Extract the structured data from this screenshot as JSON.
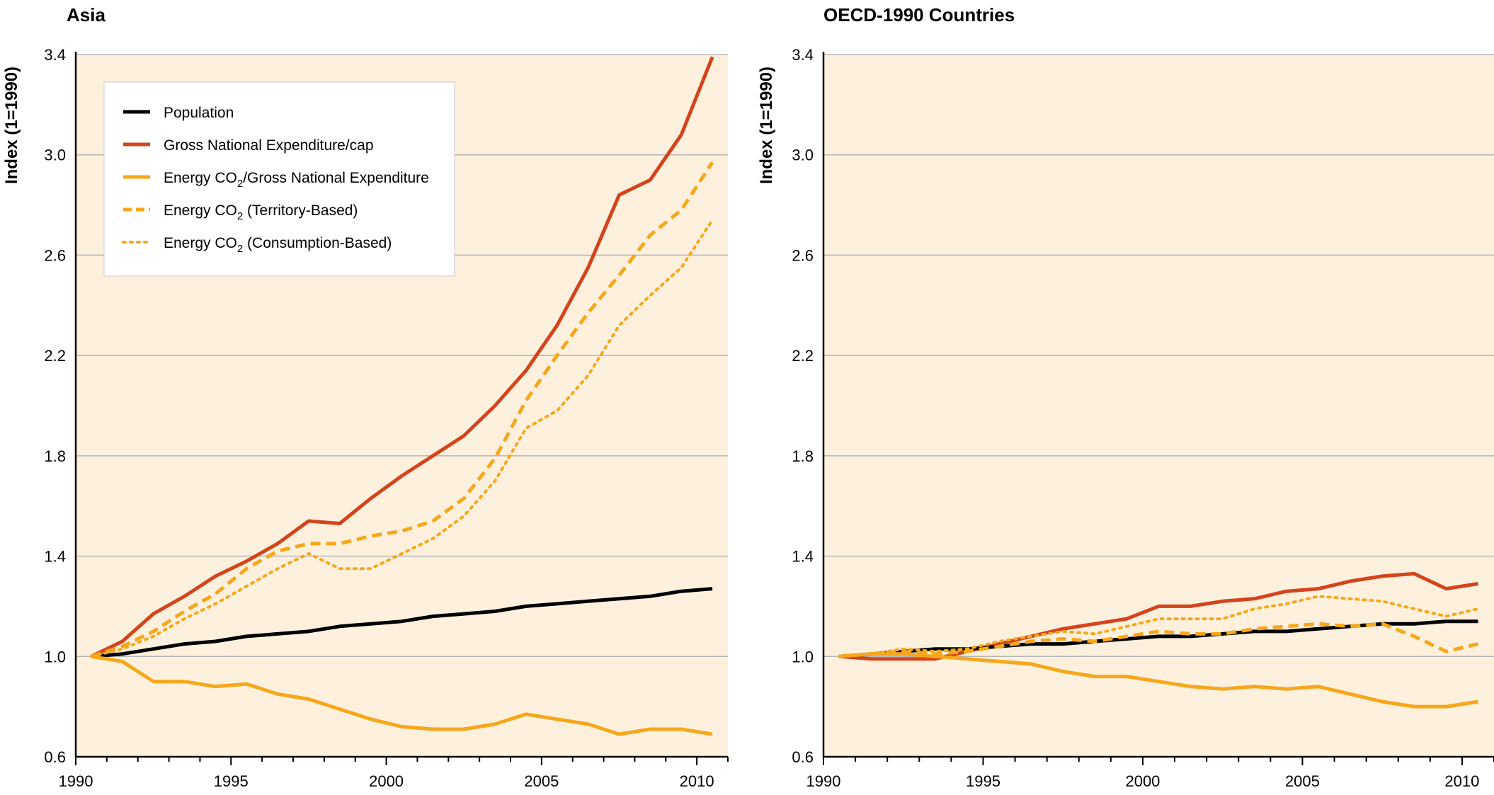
{
  "figure": {
    "colors": {
      "population": "#000000",
      "gne_cap": "#d4441c",
      "energy_co2": "#f6a71b",
      "plot_background": "#fdf1dd",
      "grid": "#b5b5b5"
    }
  },
  "legend": {
    "items": [
      {
        "key": "population",
        "text": "Population",
        "sub": "",
        "suffix": "",
        "style": "solid"
      },
      {
        "key": "gne_cap",
        "text": "Gross National Expenditure/cap",
        "sub": "",
        "suffix": "",
        "style": "solid"
      },
      {
        "key": "intensity",
        "text": "Energy CO",
        "sub": "2",
        "suffix": "/Gross National Expenditure",
        "style": "solid"
      },
      {
        "key": "territory",
        "text": "Energy CO",
        "sub": "2",
        "suffix": " (Territory-Based)",
        "style": "dashed"
      },
      {
        "key": "consumption",
        "text": "Energy CO",
        "sub": "2",
        "suffix": " (Consumption-Based)",
        "style": "dotted"
      }
    ]
  },
  "chart_data": [
    {
      "type": "line",
      "title": "Asia",
      "xlabel": "",
      "ylabel": "Index (1=1990)",
      "xlim": [
        1990,
        2011
      ],
      "ylim": [
        0.6,
        3.4
      ],
      "yticks": [
        0.6,
        1.0,
        1.4,
        1.8,
        2.2,
        2.6,
        3.0,
        3.4
      ],
      "ytick_labels": [
        "0.6",
        "1.0",
        "1.4",
        "1.8",
        "2.2",
        "2.6",
        "3.0",
        "3.4"
      ],
      "xticks": [
        1990,
        1995,
        2000,
        2005,
        2010
      ],
      "xtick_labels": [
        "1990",
        "1995",
        "2000",
        "2005",
        "2010"
      ],
      "grid": true,
      "legend_position": "top-left",
      "x": [
        1990.5,
        1991.5,
        1992.5,
        1993.5,
        1994.5,
        1995.5,
        1996.5,
        1997.5,
        1998.5,
        1999.5,
        2000.5,
        2001.5,
        2002.5,
        2003.5,
        2004.5,
        2005.5,
        2006.5,
        2007.5,
        2008.5,
        2009.5,
        2010.5
      ],
      "series": [
        {
          "name": "Population",
          "key": "population",
          "values": [
            1.0,
            1.01,
            1.03,
            1.05,
            1.06,
            1.08,
            1.09,
            1.1,
            1.12,
            1.13,
            1.14,
            1.16,
            1.17,
            1.18,
            1.2,
            1.21,
            1.22,
            1.23,
            1.24,
            1.26,
            1.27
          ]
        },
        {
          "name": "Gross National Expenditure/cap",
          "key": "gne_cap",
          "values": [
            1.0,
            1.06,
            1.17,
            1.24,
            1.32,
            1.38,
            1.45,
            1.54,
            1.53,
            1.63,
            1.72,
            1.8,
            1.88,
            2.0,
            2.14,
            2.32,
            2.55,
            2.84,
            2.9,
            3.08,
            3.39
          ]
        },
        {
          "name": "Energy CO2/Gross National Expenditure",
          "key": "intensity",
          "values": [
            1.0,
            0.98,
            0.9,
            0.9,
            0.88,
            0.89,
            0.85,
            0.83,
            0.79,
            0.75,
            0.72,
            0.71,
            0.71,
            0.73,
            0.77,
            0.75,
            0.73,
            0.69,
            0.71,
            0.71,
            0.69
          ]
        },
        {
          "name": "Energy CO2 (Territory-Based)",
          "key": "territory",
          "values": [
            1.0,
            1.04,
            1.1,
            1.18,
            1.25,
            1.35,
            1.42,
            1.45,
            1.45,
            1.48,
            1.5,
            1.54,
            1.63,
            1.79,
            2.02,
            2.2,
            2.37,
            2.52,
            2.68,
            2.78,
            2.97
          ]
        },
        {
          "name": "Energy CO2 (Consumption-Based)",
          "key": "consumption",
          "values": [
            1.0,
            1.03,
            1.08,
            1.15,
            1.21,
            1.28,
            1.35,
            1.41,
            1.35,
            1.35,
            1.41,
            1.47,
            1.56,
            1.7,
            1.91,
            1.98,
            2.12,
            2.32,
            2.44,
            2.55,
            2.74
          ]
        }
      ]
    },
    {
      "type": "line",
      "title": "OECD-1990 Countries",
      "xlabel": "",
      "ylabel": "Index (1=1990)",
      "xlim": [
        1990,
        2011
      ],
      "ylim": [
        0.6,
        3.4
      ],
      "yticks": [
        0.6,
        1.0,
        1.4,
        1.8,
        2.2,
        2.6,
        3.0,
        3.4
      ],
      "ytick_labels": [
        "0.6",
        "1.0",
        "1.4",
        "1.8",
        "2.2",
        "2.6",
        "3.0",
        "3.4"
      ],
      "xticks": [
        1990,
        1995,
        2000,
        2005,
        2010
      ],
      "xtick_labels": [
        "1990",
        "1995",
        "2000",
        "2005",
        "2010"
      ],
      "grid": true,
      "x": [
        1990.5,
        1991.5,
        1992.5,
        1993.5,
        1994.5,
        1995.5,
        1996.5,
        1997.5,
        1998.5,
        1999.5,
        2000.5,
        2001.5,
        2002.5,
        2003.5,
        2004.5,
        2005.5,
        2006.5,
        2007.5,
        2008.5,
        2009.5,
        2010.5
      ],
      "series": [
        {
          "name": "Population",
          "key": "population",
          "values": [
            1.0,
            1.01,
            1.02,
            1.03,
            1.03,
            1.04,
            1.05,
            1.05,
            1.06,
            1.07,
            1.08,
            1.08,
            1.09,
            1.1,
            1.1,
            1.11,
            1.12,
            1.13,
            1.13,
            1.14,
            1.14
          ]
        },
        {
          "name": "Gross National Expenditure/cap",
          "key": "gne_cap",
          "values": [
            1.0,
            0.99,
            0.99,
            0.99,
            1.02,
            1.05,
            1.08,
            1.11,
            1.13,
            1.15,
            1.2,
            1.2,
            1.22,
            1.23,
            1.26,
            1.27,
            1.3,
            1.32,
            1.33,
            1.27,
            1.29
          ]
        },
        {
          "name": "Energy CO2/Gross National Expenditure",
          "key": "intensity",
          "values": [
            1.0,
            1.01,
            1.01,
            1.0,
            0.99,
            0.98,
            0.97,
            0.94,
            0.92,
            0.92,
            0.9,
            0.88,
            0.87,
            0.88,
            0.87,
            0.88,
            0.85,
            0.82,
            0.8,
            0.8,
            0.82
          ]
        },
        {
          "name": "Energy CO2 (Territory-Based)",
          "key": "territory",
          "values": [
            1.0,
            1.01,
            1.02,
            1.01,
            1.02,
            1.04,
            1.06,
            1.07,
            1.06,
            1.08,
            1.1,
            1.09,
            1.09,
            1.11,
            1.12,
            1.13,
            1.12,
            1.13,
            1.08,
            1.02,
            1.05
          ]
        },
        {
          "name": "Energy CO2 (Consumption-Based)",
          "key": "consumption",
          "values": [
            1.0,
            1.01,
            1.03,
            1.02,
            1.03,
            1.06,
            1.08,
            1.1,
            1.09,
            1.12,
            1.15,
            1.15,
            1.15,
            1.19,
            1.21,
            1.24,
            1.23,
            1.22,
            1.19,
            1.16,
            1.19
          ]
        }
      ]
    }
  ]
}
